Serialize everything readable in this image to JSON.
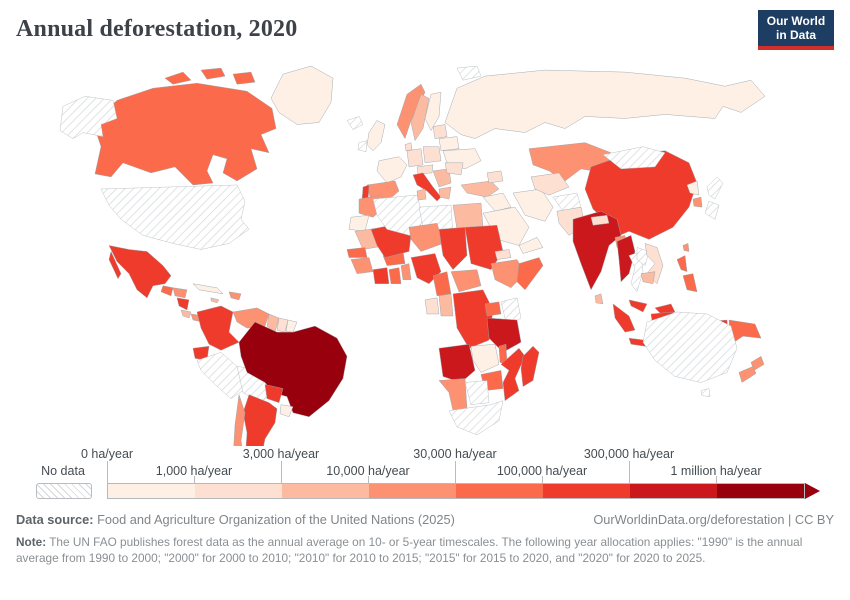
{
  "header": {
    "title": "Annual deforestation, 2020"
  },
  "logo": {
    "line1": "Our World",
    "line2": "in Data",
    "bg_color": "#1d3d63",
    "accent_color": "#d22e2b"
  },
  "legend": {
    "no_data_label": "No data",
    "tick_labels": [
      "0 ha/year",
      "1,000 ha/year",
      "3,000 ha/year",
      "10,000 ha/year",
      "30,000 ha/year",
      "100,000 ha/year",
      "300,000 ha/year",
      "1 million ha/year"
    ]
  },
  "footer": {
    "data_source_label": "Data source:",
    "data_source_text": " Food and Agriculture Organization of the United Nations (2025)",
    "link_text": "OurWorldinData.org/deforestation | CC BY",
    "note_label": "Note:",
    "note_text": " The UN FAO publishes forest data as the annual average on 10- or 5-year timescales. The following year allocation applies: \"1990\" is the annual average from 1990 to 2000; \"2000\" for 2000 to 2010; \"2010\" for 2010 to 2015; \"2015\" for 2015 to 2020, and \"2020\" for 2020 to 2025."
  },
  "chart_data": {
    "type": "choropleth_map",
    "title": "Annual deforestation, 2020",
    "unit": "ha/year",
    "bin_edges_ha_per_year": [
      0,
      1000,
      3000,
      10000,
      30000,
      100000,
      300000,
      1000000
    ],
    "bin_labels": [
      "0 ha/year",
      "1,000 ha/year",
      "3,000 ha/year",
      "10,000 ha/year",
      "30,000 ha/year",
      "100,000 ha/year",
      "300,000 ha/year",
      "1 million ha/year"
    ],
    "bin_colors": [
      "#fff0e6",
      "#fee0d2",
      "#fcbba1",
      "#fc9272",
      "#fb6a4a",
      "#ef3b2c",
      "#cb181d",
      "#99000d"
    ],
    "no_data": {
      "label": "No data",
      "pattern": "diagonal-hatch"
    },
    "country_bands": {
      "brazil": 8,
      "india": 7,
      "angola": 7,
      "tanzania": 7,
      "myanmar": 7,
      "mexico": 6,
      "colombia": 6,
      "ecuador": 6,
      "paraguay": 6,
      "argentina": 6,
      "china": 6,
      "indonesia": 6,
      "malaysia": 6,
      "drc": 6,
      "mozambique": 6,
      "madagascar": 6,
      "mali": 6,
      "chad": 6,
      "sudan": 6,
      "nigeria": 6,
      "cote-divoire": 6,
      "nicaragua": 6,
      "portugal": 6,
      "italy": 6,
      "canada": 5,
      "guatemala": 5,
      "somalia": 5,
      "ghana": 5,
      "burkina-faso": 5,
      "senegal": 5,
      "cameroon": 5,
      "uganda": 5,
      "zimbabwe": 5,
      "malawi": 5,
      "philippines": 5,
      "papua-new-guinea": 5,
      "venezuela": 4,
      "chile": 4,
      "honduras": 4,
      "panama": 4,
      "dominican-republic": 4,
      "spain": 4,
      "norway": 4,
      "kazakhstan": 4,
      "morocco": 4,
      "niger": 4,
      "ethiopia": 4,
      "namibia": 4,
      "central-african-republic": 4,
      "south-korea": 4,
      "new-zealand": 4,
      "bangladesh": 4,
      "taiwan": 4,
      "benin-togo": 4,
      "guinea": 4,
      "guyana": 3,
      "costa-rica": 3,
      "jamaica": 3,
      "sweden": 3,
      "turkey": 3,
      "tunisia": 3,
      "egypt": 3,
      "mauritania": 3,
      "congo": 3,
      "greece": 3,
      "balkans": 3,
      "cambodia": 3,
      "sri-lanka": 3,
      "suriname": 2,
      "germany": 2,
      "poland": 2,
      "romania": 2,
      "baltic-states": 2,
      "denmark": 2,
      "gabon": 2,
      "eritrea": 2,
      "uzbekistan-turkmenistan": 2,
      "pakistan": 2,
      "vietnam": 2,
      "nepal": 2,
      "czechia-austria": 2,
      "caucasus": 2,
      "greenland": 1,
      "russia": 1,
      "finland": 1,
      "france": 1,
      "united-kingdom": 1,
      "ukraine": 1,
      "belarus": 1,
      "uruguay": 1,
      "french-guiana": 1,
      "cuba": 1,
      "saudi-arabia": 1,
      "iran": 1,
      "iraq": 1,
      "yemen-oman": 1,
      "zambia": 1,
      "north-korea": 1,
      "western-sahara": 1,
      "united-states": "no_data",
      "alaska": "no_data",
      "peru": "no_data",
      "bolivia": "no_data",
      "iceland": "no_data",
      "ireland": "no_data",
      "algeria": "no_data",
      "libya": "no_data",
      "kenya": "no_data",
      "botswana": "no_data",
      "south-africa": "no_data",
      "mongolia": "no_data",
      "thailand": "no_data",
      "laos": "no_data",
      "afghanistan": "no_data",
      "japan": "no_data",
      "australia": "no_data",
      "svalbard": "no_data"
    }
  }
}
